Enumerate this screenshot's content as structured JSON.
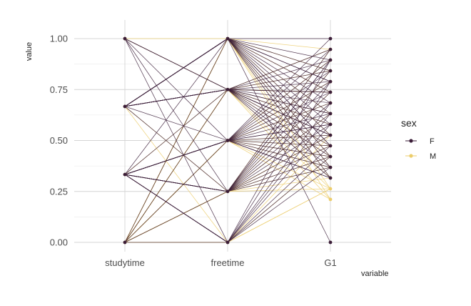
{
  "chart_data": {
    "type": "parallel-coordinates",
    "title": "",
    "xlabel": "variable",
    "ylabel": "value",
    "ylim": [
      0,
      1
    ],
    "y_ticks": [
      "0.00",
      "0.25",
      "0.50",
      "0.75",
      "1.00"
    ],
    "y_tick_values": [
      0,
      0.25,
      0.5,
      0.75,
      1.0
    ],
    "x_categories": [
      "studytime",
      "freetime",
      "G1"
    ],
    "grid": true,
    "legend": {
      "title": "sex",
      "placement": "right",
      "entries": [
        {
          "label": "F",
          "color": "#3b1d38"
        },
        {
          "label": "M",
          "color": "#eccd6b"
        }
      ]
    },
    "series": [
      {
        "name": "F",
        "color": "#3b1d38",
        "lines": [
          [
            1.0,
            0.5,
            0.316
          ],
          [
            1.0,
            0.25,
            0.895
          ],
          [
            1.0,
            0.0,
            0.421
          ],
          [
            0.667,
            1.0,
            0.684
          ],
          [
            0.667,
            0.75,
            0.579
          ],
          [
            0.667,
            0.5,
            0.947
          ],
          [
            0.667,
            0.25,
            0.368
          ],
          [
            0.333,
            1.0,
            0.789
          ],
          [
            0.333,
            0.75,
            0.526
          ],
          [
            0.333,
            0.5,
            0.737
          ],
          [
            0.333,
            0.0,
            0.632
          ],
          [
            0.0,
            1.0,
            0.474
          ],
          [
            0.0,
            0.25,
            0.842
          ],
          [
            0.0,
            0.0,
            0.368
          ],
          [
            0.667,
            1.0,
            0.0
          ],
          [
            0.667,
            1.0,
            1.0
          ],
          [
            0.667,
            1.0,
            0.895
          ],
          [
            0.667,
            1.0,
            0.842
          ],
          [
            0.667,
            1.0,
            0.789
          ],
          [
            0.667,
            1.0,
            0.737
          ],
          [
            0.667,
            1.0,
            0.632
          ],
          [
            0.667,
            1.0,
            0.579
          ],
          [
            0.667,
            1.0,
            0.526
          ],
          [
            0.667,
            1.0,
            0.474
          ],
          [
            0.667,
            1.0,
            0.421
          ],
          [
            0.667,
            1.0,
            0.368
          ],
          [
            0.667,
            1.0,
            0.316
          ],
          [
            0.667,
            0.75,
            0.947
          ],
          [
            0.667,
            0.75,
            0.895
          ],
          [
            0.667,
            0.75,
            0.842
          ],
          [
            0.667,
            0.75,
            0.789
          ],
          [
            0.667,
            0.75,
            0.737
          ],
          [
            0.667,
            0.75,
            0.684
          ],
          [
            0.667,
            0.75,
            0.632
          ],
          [
            0.667,
            0.75,
            0.526
          ],
          [
            0.667,
            0.75,
            0.474
          ],
          [
            0.667,
            0.75,
            0.421
          ],
          [
            0.667,
            0.75,
            0.368
          ],
          [
            0.667,
            0.75,
            0.316
          ],
          [
            0.333,
            0.5,
            1.0
          ],
          [
            0.333,
            0.5,
            0.895
          ],
          [
            0.333,
            0.5,
            0.842
          ],
          [
            0.333,
            0.5,
            0.789
          ],
          [
            0.333,
            0.5,
            0.684
          ],
          [
            0.333,
            0.5,
            0.632
          ],
          [
            0.333,
            0.5,
            0.579
          ],
          [
            0.333,
            0.5,
            0.526
          ],
          [
            0.333,
            0.5,
            0.474
          ],
          [
            0.333,
            0.5,
            0.421
          ],
          [
            0.333,
            0.5,
            0.368
          ],
          [
            0.333,
            0.5,
            0.316
          ],
          [
            0.333,
            0.25,
            0.947
          ],
          [
            0.333,
            0.25,
            0.895
          ],
          [
            0.333,
            0.25,
            0.789
          ],
          [
            0.333,
            0.25,
            0.737
          ],
          [
            0.333,
            0.25,
            0.684
          ],
          [
            0.333,
            0.25,
            0.632
          ],
          [
            0.333,
            0.25,
            0.579
          ],
          [
            0.333,
            0.25,
            0.526
          ],
          [
            0.333,
            0.25,
            0.474
          ],
          [
            0.333,
            0.25,
            0.421
          ],
          [
            0.333,
            0.0,
            0.895
          ],
          [
            0.333,
            0.0,
            0.789
          ],
          [
            0.333,
            0.0,
            0.684
          ],
          [
            0.333,
            0.0,
            0.579
          ],
          [
            0.333,
            0.0,
            0.474
          ],
          [
            1.0,
            0.75,
            0.632
          ],
          [
            1.0,
            0.75,
            0.526
          ],
          [
            0.0,
            0.75,
            0.737
          ],
          [
            0.0,
            0.5,
            0.579
          ]
        ]
      },
      {
        "name": "M",
        "color": "#eccd6b",
        "lines": [
          [
            1.0,
            1.0,
            0.947
          ],
          [
            1.0,
            0.75,
            0.737
          ],
          [
            0.667,
            0.0,
            0.263
          ],
          [
            0.667,
            0.25,
            0.526
          ],
          [
            0.333,
            0.75,
            0.211
          ],
          [
            0.333,
            0.25,
            0.474
          ],
          [
            0.0,
            1.0,
            0.842
          ],
          [
            0.0,
            0.75,
            0.579
          ],
          [
            0.0,
            0.5,
            0.421
          ],
          [
            0.0,
            0.25,
            0.368
          ],
          [
            0.0,
            0.0,
            0.263
          ],
          [
            0.0,
            1.0,
            0.737
          ],
          [
            0.0,
            1.0,
            0.632
          ],
          [
            0.0,
            1.0,
            0.526
          ],
          [
            0.0,
            1.0,
            0.421
          ],
          [
            0.0,
            1.0,
            0.368
          ],
          [
            0.0,
            1.0,
            0.316
          ],
          [
            0.0,
            1.0,
            0.263
          ],
          [
            0.0,
            1.0,
            0.211
          ],
          [
            0.0,
            0.75,
            0.947
          ],
          [
            0.0,
            0.75,
            0.842
          ],
          [
            0.0,
            0.75,
            0.737
          ],
          [
            0.0,
            0.75,
            0.632
          ],
          [
            0.0,
            0.75,
            0.526
          ],
          [
            0.0,
            0.75,
            0.474
          ],
          [
            0.0,
            0.75,
            0.421
          ],
          [
            0.0,
            0.75,
            0.316
          ],
          [
            0.0,
            0.75,
            0.263
          ],
          [
            0.0,
            0.5,
            0.895
          ],
          [
            0.0,
            0.5,
            0.789
          ],
          [
            0.0,
            0.5,
            0.684
          ],
          [
            0.0,
            0.5,
            0.526
          ],
          [
            0.0,
            0.5,
            0.474
          ],
          [
            0.0,
            0.5,
            0.368
          ],
          [
            0.0,
            0.5,
            0.263
          ],
          [
            0.0,
            0.5,
            0.211
          ],
          [
            0.0,
            0.25,
            0.947
          ],
          [
            0.0,
            0.25,
            0.842
          ],
          [
            0.0,
            0.25,
            0.737
          ],
          [
            0.0,
            0.25,
            0.632
          ],
          [
            0.0,
            0.25,
            0.526
          ],
          [
            0.0,
            0.25,
            0.421
          ],
          [
            0.0,
            0.25,
            0.316
          ],
          [
            0.0,
            0.25,
            0.263
          ],
          [
            0.0,
            0.0,
            0.526
          ],
          [
            0.0,
            0.0,
            0.421
          ]
        ]
      }
    ]
  }
}
